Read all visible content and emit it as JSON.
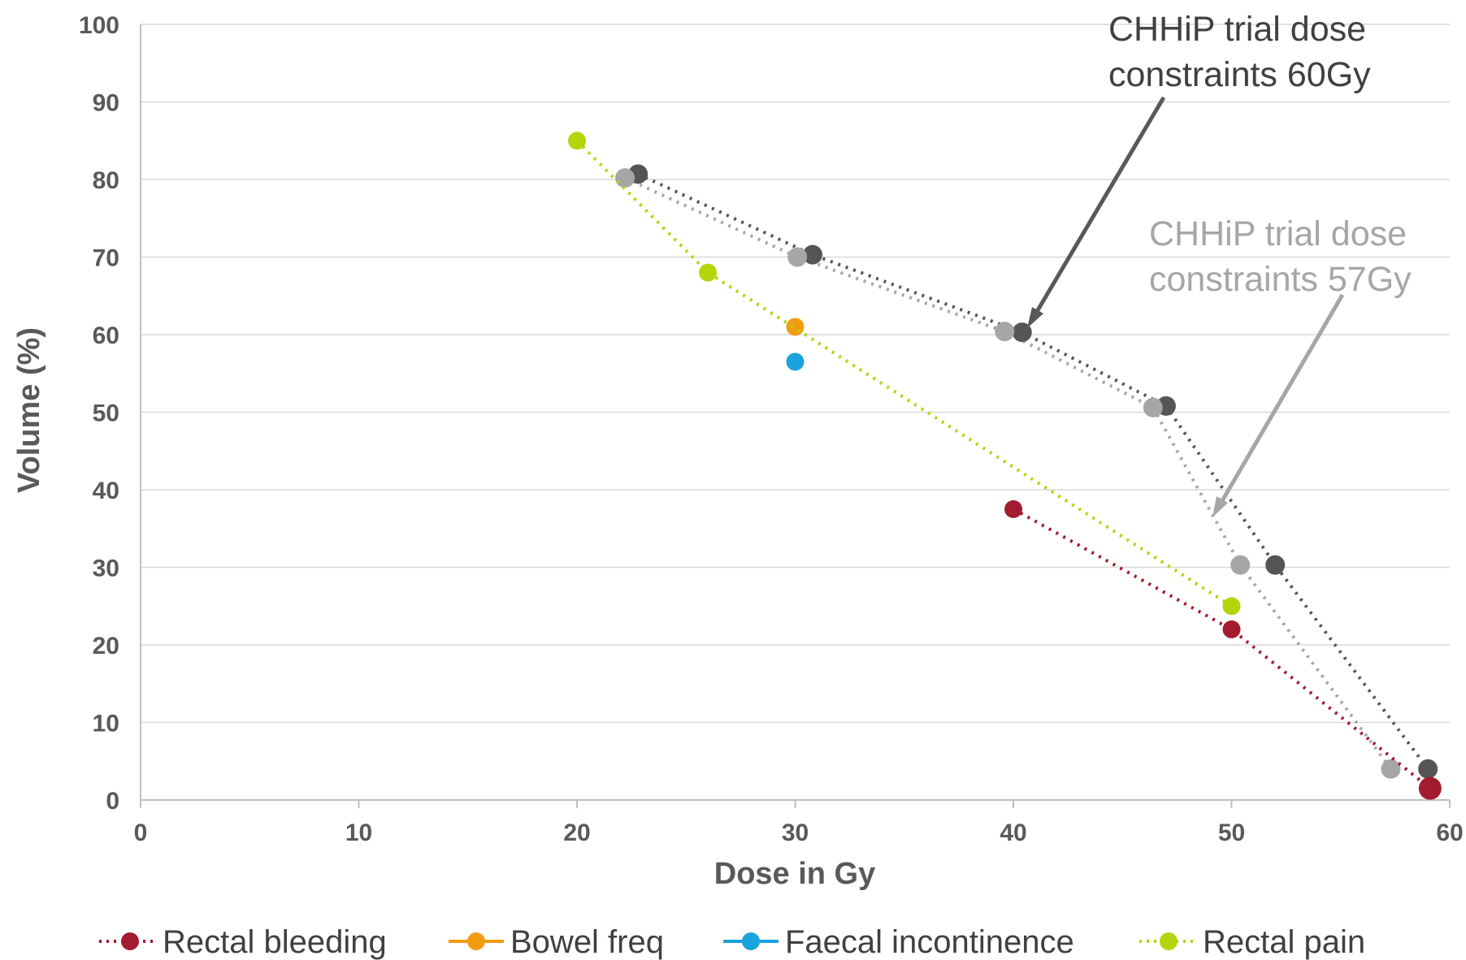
{
  "chart_data": {
    "type": "scatter",
    "title": "",
    "xlabel": "Dose in Gy",
    "ylabel": "Volume (%)",
    "xlim": [
      0,
      60
    ],
    "ylim": [
      0,
      100
    ],
    "xticks": [
      "0",
      "10",
      "20",
      "30",
      "40",
      "50",
      "60"
    ],
    "yticks": [
      "0",
      "10",
      "20",
      "30",
      "40",
      "50",
      "60",
      "70",
      "80",
      "90",
      "100"
    ],
    "grid": "horizontal",
    "legend_position": "bottom",
    "series": [
      {
        "name": "Rectal bleeding",
        "color": "#a31b2e",
        "line": "dotted",
        "points": [
          [
            40,
            37.5
          ],
          [
            50,
            22
          ],
          [
            59.1,
            1.5
          ]
        ]
      },
      {
        "name": "Bowel freq",
        "color": "#f39c12",
        "line": "solid",
        "points": [
          [
            30,
            61
          ]
        ]
      },
      {
        "name": "Faecal incontinence",
        "color": "#1aa3dc",
        "line": "solid",
        "points": [
          [
            30,
            56.5
          ]
        ]
      },
      {
        "name": "Rectal pain",
        "color": "#b5d40c",
        "line": "dotted",
        "points": [
          [
            20,
            85
          ],
          [
            26,
            68
          ],
          [
            50,
            25
          ]
        ]
      }
    ],
    "constraint_series": [
      {
        "color": "#555555",
        "points": [
          [
            22.8,
            80.7
          ],
          [
            30.8,
            70.3
          ],
          [
            40.4,
            60.3
          ],
          [
            47,
            50.8
          ],
          [
            52,
            30.3
          ],
          [
            59,
            4
          ]
        ]
      },
      {
        "color": "#a6a6a6",
        "points": [
          [
            22.2,
            80.2
          ],
          [
            30.1,
            70
          ],
          [
            39.6,
            60.4
          ],
          [
            46.4,
            50.6
          ],
          [
            50.4,
            30.3
          ],
          [
            57.3,
            4
          ]
        ]
      }
    ],
    "annotations": [
      {
        "lines": [
          "CHHiP trial dose",
          "constraints 60Gy"
        ],
        "color": "#404040"
      },
      {
        "lines": [
          "CHHiP trial dose",
          "constraints 57Gy"
        ],
        "color": "#a6a6a6"
      }
    ]
  }
}
